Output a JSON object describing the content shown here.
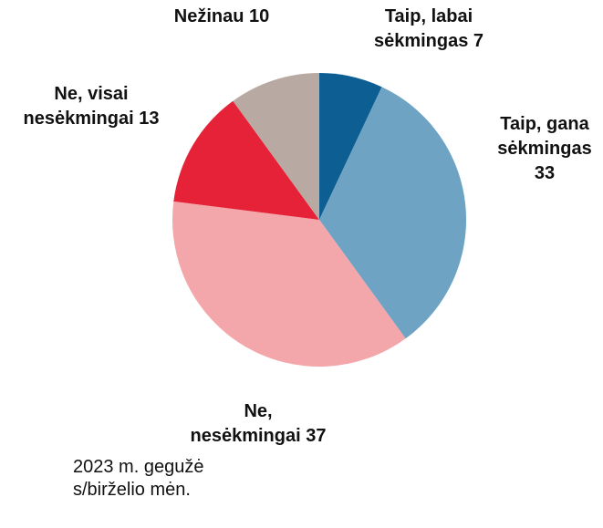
{
  "chart_data": {
    "type": "pie",
    "categories": [
      "Taip, labai sėkmingas",
      "Taip, gana sėkmingas",
      "Ne, nesėkmingai",
      "Ne, visai nesėkmingai",
      "Nežinau"
    ],
    "values": [
      7,
      33,
      37,
      13,
      10
    ],
    "colors": [
      "#0d5e93",
      "#6ea3c4",
      "#f4a7ab",
      "#e52237",
      "#b8aaa2"
    ],
    "note": "2023 m. gegužės/birželio mėn."
  }
}
